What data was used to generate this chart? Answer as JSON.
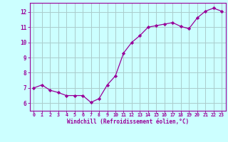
{
  "x": [
    0,
    1,
    2,
    3,
    4,
    5,
    6,
    7,
    8,
    9,
    10,
    11,
    12,
    13,
    14,
    15,
    16,
    17,
    18,
    19,
    20,
    21,
    22,
    23
  ],
  "y": [
    7.0,
    7.2,
    6.85,
    6.7,
    6.5,
    6.5,
    6.5,
    6.05,
    6.3,
    7.2,
    7.8,
    9.3,
    10.0,
    10.45,
    11.0,
    11.1,
    11.2,
    11.3,
    11.05,
    10.9,
    11.6,
    12.05,
    12.25,
    12.05
  ],
  "line_color": "#990099",
  "marker": "D",
  "marker_size": 2.2,
  "bg_color": "#ccffff",
  "grid_color": "#aacccc",
  "xlabel": "Windchill (Refroidissement éolien,°C)",
  "xlabel_color": "#990099",
  "tick_color": "#990099",
  "ylim": [
    5.5,
    12.6
  ],
  "xlim": [
    -0.5,
    23.5
  ],
  "yticks": [
    6,
    7,
    8,
    9,
    10,
    11,
    12
  ],
  "xticks": [
    0,
    1,
    2,
    3,
    4,
    5,
    6,
    7,
    8,
    9,
    10,
    11,
    12,
    13,
    14,
    15,
    16,
    17,
    18,
    19,
    20,
    21,
    22,
    23
  ]
}
